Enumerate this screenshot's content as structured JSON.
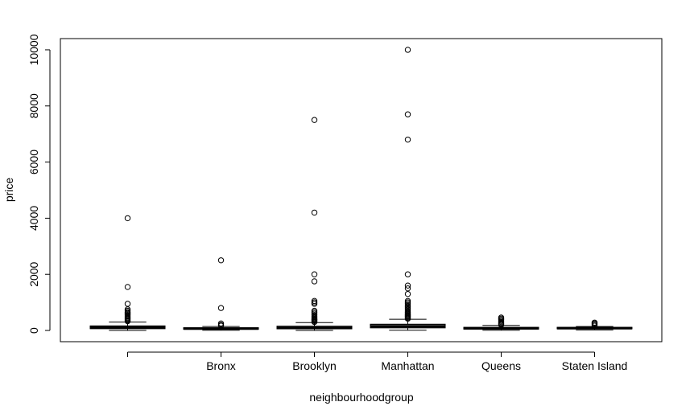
{
  "chart_data": {
    "type": "box",
    "xlabel": "neighbourhoodgroup",
    "ylabel": "price",
    "ylim": [
      -400,
      10400
    ],
    "yticks": [
      0,
      2000,
      4000,
      6000,
      8000,
      10000
    ],
    "grid": false,
    "legend": "none",
    "categories": [
      "",
      "Bronx",
      "Brooklyn",
      "Manhattan",
      "Queens",
      "Staten Island"
    ],
    "boxes": [
      {
        "category": "",
        "whisker_low": 0,
        "q1": 65,
        "median": 100,
        "q3": 160,
        "whisker_high": 300,
        "outliers": [
          330,
          360,
          400,
          430,
          460,
          500,
          540,
          580,
          620,
          650,
          700,
          750,
          950,
          1550,
          4000
        ]
      },
      {
        "category": "Bronx",
        "whisker_low": 10,
        "q1": 45,
        "median": 65,
        "q3": 95,
        "whisker_high": 140,
        "outliers": [
          170,
          200,
          250,
          800,
          2500
        ]
      },
      {
        "category": "Brooklyn",
        "whisker_low": 0,
        "q1": 60,
        "median": 90,
        "q3": 150,
        "whisker_high": 280,
        "outliers": [
          300,
          320,
          350,
          380,
          400,
          430,
          460,
          500,
          550,
          600,
          650,
          700,
          950,
          1000,
          1050,
          1750,
          2000,
          4200,
          7500
        ]
      },
      {
        "category": "Manhattan",
        "whisker_low": 10,
        "q1": 95,
        "median": 150,
        "q3": 220,
        "whisker_high": 400,
        "outliers": [
          420,
          450,
          480,
          510,
          540,
          570,
          600,
          630,
          660,
          700,
          750,
          800,
          850,
          900,
          950,
          1000,
          1050,
          1300,
          1500,
          1600,
          2000,
          6800,
          7700,
          10000
        ]
      },
      {
        "category": "Queens",
        "whisker_low": 10,
        "q1": 50,
        "median": 75,
        "q3": 110,
        "whisker_high": 180,
        "outliers": [
          200,
          230,
          260,
          300,
          340,
          380,
          420,
          460
        ]
      },
      {
        "category": "Staten Island",
        "whisker_low": 20,
        "q1": 60,
        "median": 80,
        "q3": 110,
        "whisker_high": 140,
        "outliers": [
          170,
          210,
          250,
          280
        ]
      }
    ]
  }
}
